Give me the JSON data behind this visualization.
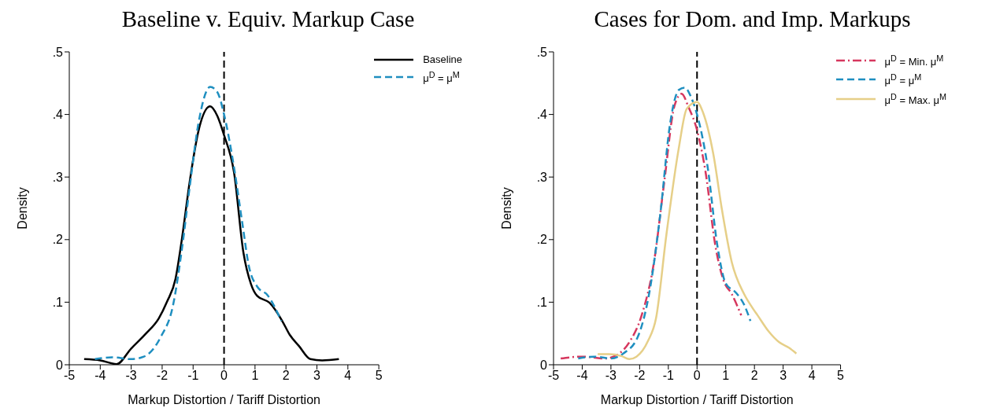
{
  "chart_data": [
    {
      "type": "line",
      "title": "Baseline v. Equiv. Markup Case",
      "xlabel": "Markup Distortion / Tariff Distortion",
      "ylabel": "Density",
      "xlim": [
        -5,
        5
      ],
      "xticks": [
        -5,
        -4,
        -3,
        -2,
        -1,
        0,
        1,
        2,
        3,
        4,
        5
      ],
      "ylim": [
        0,
        0.5
      ],
      "yticks": [
        0,
        {
          "value": 0.1,
          "label": ".1"
        },
        {
          "value": 0.2,
          "label": ".2"
        },
        {
          "value": 0.3,
          "label": ".3"
        },
        {
          "value": 0.4,
          "label": ".4"
        },
        {
          "value": 0.5,
          "label": ".5"
        }
      ],
      "grid": false,
      "legend": "top right",
      "marker": "none",
      "ref_lines": [
        {
          "axis": "x",
          "value": 0,
          "color": "#000000",
          "line_style": "dashed"
        }
      ],
      "series": [
        {
          "name": "Baseline",
          "color": "#000000",
          "line_style": "solid",
          "x": [
            -4.52,
            -4.0,
            -3.47,
            -3.0,
            -2.52,
            -2.11,
            -1.84,
            -1.57,
            -1.37,
            -1.1,
            -0.83,
            -0.45,
            -0.22,
            0,
            0.32,
            0.63,
            0.87,
            1.07,
            1.47,
            1.88,
            2.12,
            2.42,
            2.79,
            3.17,
            3.71
          ],
          "values": [
            0.009,
            0.007,
            0.001,
            0.026,
            0.05,
            0.074,
            0.101,
            0.137,
            0.198,
            0.296,
            0.373,
            0.413,
            0.398,
            0.367,
            0.308,
            0.178,
            0.129,
            0.11,
            0.099,
            0.07,
            0.048,
            0.03,
            0.009,
            0.007,
            0.009
          ]
        },
        {
          "name": "μ$^{D}$ = μ$^{M}$",
          "color": "#1f8fc0",
          "line_style": "dashed",
          "x": [
            -4.17,
            -3.6,
            -3.0,
            -2.59,
            -2.05,
            -1.64,
            -1.37,
            -1.1,
            -0.83,
            -0.45,
            -0.22,
            0,
            0.32,
            0.6,
            0.8,
            1.07,
            1.41,
            1.85
          ],
          "values": [
            0.009,
            0.012,
            0.009,
            0.013,
            0.044,
            0.097,
            0.182,
            0.288,
            0.385,
            0.444,
            0.436,
            0.4,
            0.316,
            0.223,
            0.158,
            0.125,
            0.111,
            0.07
          ]
        }
      ]
    },
    {
      "type": "line",
      "title": "Cases for Dom. and Imp. Markups",
      "xlabel": "Markup Distortion / Tariff Distortion",
      "ylabel": "Density",
      "xlim": [
        -5,
        5
      ],
      "xticks": [
        -5,
        -4,
        -3,
        -2,
        -1,
        0,
        1,
        2,
        3,
        4,
        5
      ],
      "ylim": [
        0,
        0.5
      ],
      "yticks": [
        0,
        {
          "value": 0.1,
          "label": ".1"
        },
        {
          "value": 0.2,
          "label": ".2"
        },
        {
          "value": 0.3,
          "label": ".3"
        },
        {
          "value": 0.4,
          "label": ".4"
        },
        {
          "value": 0.5,
          "label": ".5"
        }
      ],
      "grid": false,
      "legend": "top right",
      "marker": "none",
      "ref_lines": [
        {
          "axis": "x",
          "value": 0,
          "color": "#000000",
          "line_style": "dashed"
        }
      ],
      "series": [
        {
          "name": "μ$^{D}$ = Min. μ$^{M}$",
          "color": "#d6375e",
          "line_style": "dashdot",
          "x": [
            -4.75,
            -4.0,
            -3.21,
            -2.71,
            -2.36,
            -1.93,
            -1.5,
            -1.14,
            -0.79,
            -0.54,
            -0.29,
            0,
            0.29,
            0.64,
            0.93,
            1.21,
            1.54
          ],
          "values": [
            0.01,
            0.013,
            0.01,
            0.018,
            0.036,
            0.079,
            0.164,
            0.293,
            0.413,
            0.433,
            0.411,
            0.375,
            0.31,
            0.19,
            0.134,
            0.113,
            0.079
          ]
        },
        {
          "name": "μ$^{D}$ = μ$^{M}$",
          "color": "#1f8fc0",
          "line_style": "dashed",
          "x": [
            -4.14,
            -3.57,
            -3.0,
            -2.57,
            -2.07,
            -1.64,
            -1.29,
            -0.93,
            -0.64,
            -0.43,
            -0.21,
            0,
            0.36,
            0.71,
            1.0,
            1.36,
            1.64,
            1.86
          ],
          "values": [
            0.01,
            0.013,
            0.01,
            0.018,
            0.044,
            0.121,
            0.237,
            0.388,
            0.439,
            0.443,
            0.428,
            0.4,
            0.319,
            0.19,
            0.13,
            0.115,
            0.096,
            0.07
          ]
        },
        {
          "name": "μ$^{D}$ = Max. μ$^{M}$",
          "color": "#e6cf88",
          "line_style": "solid",
          "x": [
            -3.46,
            -3.07,
            -2.64,
            -2.36,
            -2.11,
            -1.71,
            -1.43,
            -1.07,
            -0.64,
            -0.36,
            0,
            0.21,
            0.57,
            0.86,
            1.21,
            1.64,
            1.93,
            2.11,
            2.5,
            2.86,
            3.21,
            3.46
          ],
          "values": [
            0.017,
            0.017,
            0.014,
            0.009,
            0.013,
            0.038,
            0.074,
            0.207,
            0.345,
            0.409,
            0.42,
            0.403,
            0.336,
            0.25,
            0.164,
            0.113,
            0.091,
            0.079,
            0.053,
            0.036,
            0.027,
            0.018
          ]
        }
      ]
    }
  ]
}
